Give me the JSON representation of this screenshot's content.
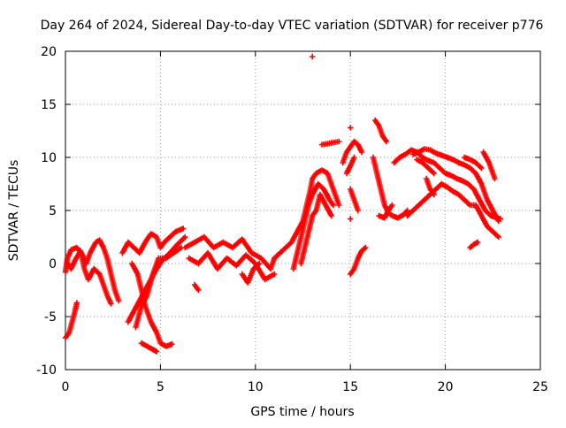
{
  "chart_data": {
    "type": "scatter",
    "title": "Day 264 of 2024, Sidereal Day-to-day VTEC variation (SDTVAR) for receiver p776",
    "xlabel": "GPS time / hours",
    "ylabel": "SDTVAR / TECUs",
    "xlim": [
      0,
      25
    ],
    "ylim": [
      -10,
      20
    ],
    "xticks": [
      0,
      5,
      10,
      15,
      20,
      25
    ],
    "yticks": [
      -10,
      -5,
      0,
      5,
      10,
      15,
      20
    ],
    "xtick_labels": [
      "0",
      "5",
      "10",
      "15",
      "20",
      "25"
    ],
    "ytick_labels": [
      "-10",
      "-5",
      "0",
      "5",
      "10",
      "15",
      "20"
    ],
    "grid": true,
    "marker": "plus",
    "color": "#ff0000",
    "series": [
      {
        "points": [
          [
            0.0,
            -7.0
          ],
          [
            0.2,
            -6.5
          ],
          [
            0.35,
            -5.5
          ],
          [
            0.5,
            -4.5
          ],
          [
            0.6,
            -3.7
          ]
        ]
      },
      {
        "points": [
          [
            0.0,
            -0.8
          ],
          [
            0.1,
            0.5
          ],
          [
            0.3,
            1.3
          ],
          [
            0.6,
            1.5
          ],
          [
            0.9,
            0.8
          ],
          [
            1.1,
            0.0
          ],
          [
            1.3,
            1.0
          ],
          [
            1.6,
            2.0
          ],
          [
            1.8,
            2.2
          ],
          [
            2.0,
            1.5
          ],
          [
            2.2,
            0.5
          ],
          [
            2.4,
            -1.0
          ],
          [
            2.6,
            -2.5
          ],
          [
            2.8,
            -3.5
          ]
        ]
      },
      {
        "points": [
          [
            0.1,
            0.0
          ],
          [
            0.3,
            -0.5
          ],
          [
            0.5,
            0.3
          ],
          [
            0.8,
            1.2
          ],
          [
            1.0,
            -0.5
          ],
          [
            1.2,
            -1.5
          ],
          [
            1.5,
            -0.5
          ],
          [
            1.8,
            -1.0
          ],
          [
            2.0,
            -2.0
          ],
          [
            2.2,
            -3.0
          ],
          [
            2.4,
            -3.8
          ]
        ]
      },
      {
        "points": [
          [
            3.0,
            1.0
          ],
          [
            3.3,
            2.0
          ],
          [
            3.6,
            1.5
          ],
          [
            3.9,
            1.0
          ],
          [
            4.2,
            2.0
          ],
          [
            4.5,
            2.8
          ],
          [
            4.8,
            2.5
          ],
          [
            5.0,
            1.5
          ],
          [
            5.2,
            2.0
          ],
          [
            5.5,
            2.5
          ],
          [
            5.8,
            3.0
          ],
          [
            6.2,
            3.3
          ]
        ]
      },
      {
        "points": [
          [
            3.5,
            0.0
          ],
          [
            3.8,
            -1.0
          ],
          [
            4.0,
            -2.5
          ],
          [
            4.2,
            -4.0
          ],
          [
            4.5,
            -5.5
          ],
          [
            4.8,
            -6.5
          ],
          [
            5.0,
            -7.5
          ],
          [
            5.3,
            -7.8
          ],
          [
            5.6,
            -7.6
          ]
        ]
      },
      {
        "points": [
          [
            3.3,
            -5.5
          ],
          [
            3.6,
            -4.5
          ],
          [
            3.9,
            -3.5
          ],
          [
            4.2,
            -2.5
          ],
          [
            4.5,
            -1.5
          ],
          [
            4.8,
            -0.5
          ],
          [
            5.1,
            0.3
          ],
          [
            5.5,
            1.0
          ],
          [
            5.9,
            1.8
          ],
          [
            6.3,
            2.5
          ]
        ]
      },
      {
        "points": [
          [
            3.7,
            -6.0
          ],
          [
            4.0,
            -4.0
          ],
          [
            4.3,
            -3.0
          ],
          [
            4.6,
            -1.0
          ],
          [
            4.9,
            0.5
          ],
          [
            5.3,
            0.5
          ],
          [
            5.7,
            1.0
          ],
          [
            6.1,
            1.5
          ]
        ]
      },
      {
        "points": [
          [
            4.0,
            -7.5
          ],
          [
            4.3,
            -7.8
          ],
          [
            4.6,
            -8.1
          ],
          [
            4.8,
            -8.3
          ]
        ]
      },
      {
        "points": [
          [
            6.3,
            1.5
          ],
          [
            6.8,
            2.0
          ],
          [
            7.3,
            2.5
          ],
          [
            7.8,
            1.5
          ],
          [
            8.3,
            2.0
          ],
          [
            8.8,
            1.5
          ],
          [
            9.3,
            2.3
          ],
          [
            9.8,
            1.0
          ],
          [
            10.3,
            0.5
          ],
          [
            10.8,
            -0.5
          ],
          [
            11.0,
            0.5
          ]
        ]
      },
      {
        "points": [
          [
            6.5,
            0.5
          ],
          [
            7.0,
            0.0
          ],
          [
            7.5,
            1.0
          ],
          [
            8.0,
            -0.5
          ],
          [
            8.5,
            0.5
          ],
          [
            9.0,
            -0.2
          ],
          [
            9.5,
            0.8
          ],
          [
            10.0,
            0.0
          ],
          [
            10.5,
            -1.5
          ],
          [
            11.0,
            -1.0
          ]
        ]
      },
      {
        "points": [
          [
            6.8,
            -2.0
          ],
          [
            7.0,
            -2.5
          ]
        ]
      },
      {
        "points": [
          [
            9.3,
            -1.0
          ],
          [
            9.6,
            -1.8
          ],
          [
            9.9,
            -0.5
          ],
          [
            10.2,
            0.0
          ]
        ]
      },
      {
        "points": [
          [
            11.0,
            0.5
          ],
          [
            11.3,
            1.0
          ],
          [
            11.6,
            1.5
          ],
          [
            11.9,
            2.0
          ],
          [
            12.2,
            3.0
          ],
          [
            12.5,
            4.0
          ],
          [
            12.7,
            5.5
          ],
          [
            12.9,
            7.0
          ],
          [
            13.0,
            8.0
          ],
          [
            13.2,
            8.5
          ],
          [
            13.5,
            8.8
          ],
          [
            13.8,
            8.5
          ],
          [
            14.0,
            7.5
          ],
          [
            14.2,
            6.5
          ],
          [
            14.4,
            5.5
          ]
        ]
      },
      {
        "points": [
          [
            12.0,
            -0.5
          ],
          [
            12.2,
            1.0
          ],
          [
            12.4,
            2.5
          ],
          [
            12.6,
            4.0
          ],
          [
            12.8,
            5.5
          ],
          [
            13.0,
            6.5
          ],
          [
            13.3,
            7.5
          ],
          [
            13.6,
            7.0
          ],
          [
            13.9,
            6.0
          ],
          [
            14.1,
            5.5
          ]
        ]
      },
      {
        "points": [
          [
            12.4,
            0.0
          ],
          [
            12.6,
            1.5
          ],
          [
            12.8,
            3.0
          ],
          [
            13.0,
            4.5
          ],
          [
            13.2,
            5.0
          ],
          [
            13.4,
            6.5
          ],
          [
            13.7,
            5.5
          ],
          [
            14.0,
            4.5
          ]
        ]
      },
      {
        "points": [
          [
            13.0,
            19.5
          ]
        ]
      },
      {
        "points": [
          [
            13.5,
            11.2
          ],
          [
            13.8,
            11.3
          ],
          [
            14.1,
            11.4
          ],
          [
            14.4,
            11.5
          ]
        ]
      },
      {
        "points": [
          [
            14.6,
            9.5
          ],
          [
            14.8,
            10.5
          ],
          [
            15.0,
            11.0
          ],
          [
            15.2,
            11.5
          ],
          [
            15.4,
            11.2
          ],
          [
            15.6,
            10.5
          ]
        ]
      },
      {
        "points": [
          [
            14.8,
            8.5
          ],
          [
            15.0,
            9.2
          ],
          [
            15.2,
            10.0
          ]
        ]
      },
      {
        "points": [
          [
            15.0,
            12.8
          ]
        ]
      },
      {
        "points": [
          [
            15.0,
            4.2
          ]
        ]
      },
      {
        "points": [
          [
            15.0,
            7.0
          ],
          [
            15.2,
            6.0
          ],
          [
            15.4,
            5.0
          ]
        ]
      },
      {
        "points": [
          [
            15.0,
            -1.0
          ],
          [
            15.2,
            -0.5
          ],
          [
            15.4,
            0.5
          ],
          [
            15.6,
            1.2
          ],
          [
            15.8,
            1.5
          ]
        ]
      },
      {
        "points": [
          [
            16.3,
            13.5
          ],
          [
            16.5,
            13.0
          ],
          [
            16.7,
            12.0
          ],
          [
            16.9,
            11.5
          ]
        ]
      },
      {
        "points": [
          [
            16.2,
            10.0
          ],
          [
            16.4,
            8.5
          ],
          [
            16.6,
            7.0
          ],
          [
            16.8,
            5.5
          ],
          [
            17.0,
            4.8
          ],
          [
            17.2,
            4.5
          ],
          [
            17.5,
            4.3
          ],
          [
            17.8,
            4.6
          ],
          [
            18.0,
            5.0
          ]
        ]
      },
      {
        "points": [
          [
            16.5,
            4.5
          ],
          [
            16.8,
            4.3
          ],
          [
            17.0,
            5.0
          ],
          [
            17.2,
            5.5
          ]
        ]
      },
      {
        "points": [
          [
            17.3,
            9.5
          ],
          [
            17.6,
            10.0
          ],
          [
            17.9,
            10.3
          ],
          [
            18.2,
            10.7
          ],
          [
            18.5,
            10.5
          ],
          [
            18.8,
            10.0
          ],
          [
            19.1,
            9.7
          ],
          [
            19.4,
            9.5
          ],
          [
            19.7,
            9.0
          ],
          [
            20.0,
            8.5
          ],
          [
            20.3,
            8.3
          ],
          [
            20.6,
            8.0
          ],
          [
            20.9,
            7.8
          ],
          [
            21.2,
            7.5
          ],
          [
            21.5,
            7.0
          ],
          [
            21.8,
            6.0
          ],
          [
            22.1,
            5.0
          ],
          [
            22.4,
            4.5
          ],
          [
            22.7,
            4.3
          ],
          [
            22.9,
            4.2
          ]
        ]
      },
      {
        "points": [
          [
            18.3,
            10.3
          ],
          [
            18.6,
            10.5
          ],
          [
            18.9,
            10.8
          ],
          [
            19.2,
            10.7
          ],
          [
            19.5,
            10.4
          ],
          [
            19.8,
            10.2
          ],
          [
            20.1,
            10.0
          ],
          [
            20.4,
            9.8
          ],
          [
            20.7,
            9.5
          ],
          [
            21.0,
            9.3
          ],
          [
            21.3,
            9.0
          ],
          [
            21.6,
            8.5
          ],
          [
            21.9,
            7.5
          ],
          [
            22.2,
            6.0
          ],
          [
            22.5,
            5.0
          ],
          [
            22.8,
            4.0
          ]
        ]
      },
      {
        "points": [
          [
            18.0,
            4.5
          ],
          [
            18.3,
            5.0
          ],
          [
            18.6,
            5.5
          ],
          [
            18.9,
            6.0
          ],
          [
            19.2,
            6.5
          ],
          [
            19.5,
            7.0
          ],
          [
            19.8,
            7.5
          ],
          [
            20.1,
            7.2
          ],
          [
            20.4,
            6.8
          ],
          [
            20.7,
            6.5
          ],
          [
            21.0,
            6.0
          ],
          [
            21.3,
            5.5
          ],
          [
            21.6,
            5.5
          ],
          [
            21.9,
            4.5
          ],
          [
            22.2,
            3.5
          ],
          [
            22.5,
            3.0
          ],
          [
            22.8,
            2.5
          ]
        ]
      },
      {
        "points": [
          [
            18.5,
            9.8
          ],
          [
            18.8,
            9.5
          ],
          [
            19.1,
            9.0
          ],
          [
            19.4,
            8.5
          ]
        ]
      },
      {
        "points": [
          [
            19.0,
            8.0
          ],
          [
            19.2,
            7.0
          ],
          [
            19.4,
            6.5
          ]
        ]
      },
      {
        "points": [
          [
            21.0,
            10.0
          ],
          [
            21.3,
            9.8
          ],
          [
            21.6,
            9.5
          ],
          [
            21.9,
            9.0
          ]
        ]
      },
      {
        "points": [
          [
            22.0,
            10.5
          ],
          [
            22.3,
            9.5
          ],
          [
            22.6,
            8.0
          ]
        ]
      },
      {
        "points": [
          [
            21.3,
            1.5
          ],
          [
            21.5,
            1.8
          ],
          [
            21.7,
            2.0
          ]
        ]
      }
    ]
  }
}
